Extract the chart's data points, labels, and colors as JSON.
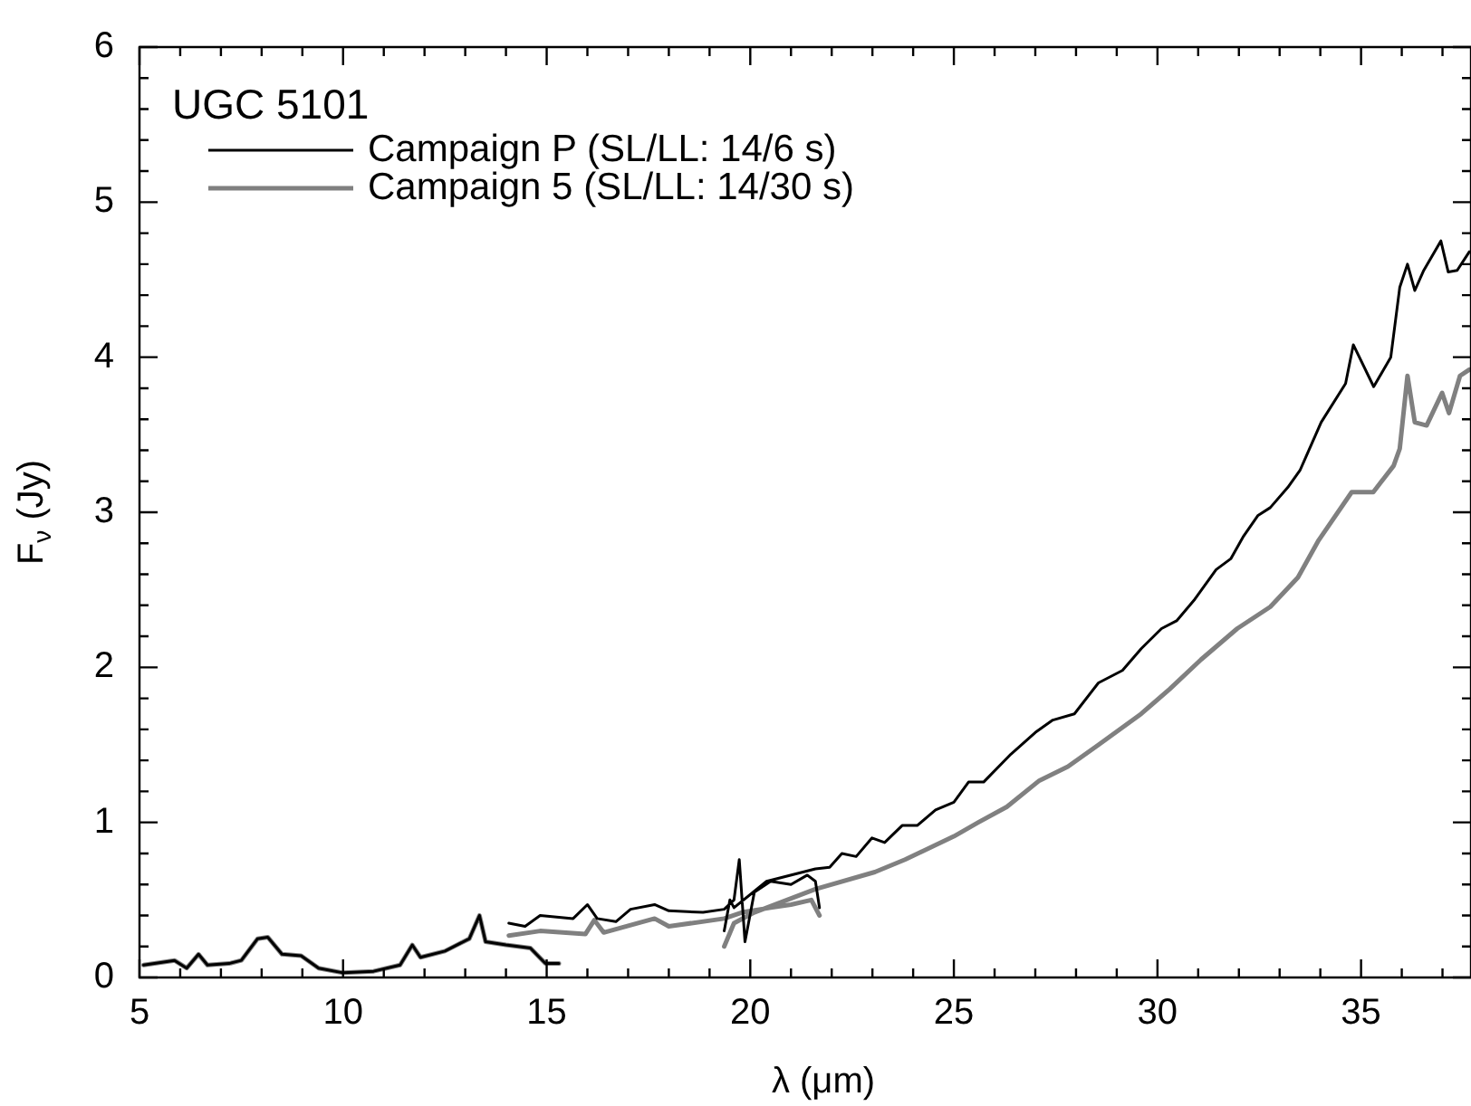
{
  "chart_data": {
    "type": "line",
    "xlabel": "λ (μm)",
    "ylabel": "F$_{ν}$ (Jy)",
    "legend_title": "UGC 5101",
    "legend": "top left",
    "grid": false,
    "marker": "none",
    "line_style": "solid",
    "xlim": [
      5,
      37.7
    ],
    "ylim": [
      0,
      6
    ],
    "xticks": [
      5,
      {
        "value": 6,
        "label": null
      },
      {
        "value": 7,
        "label": null
      },
      {
        "value": 8,
        "label": null
      },
      {
        "value": 9,
        "label": null
      },
      10,
      {
        "value": 11,
        "label": null
      },
      {
        "value": 12,
        "label": null
      },
      {
        "value": 13,
        "label": null
      },
      {
        "value": 14,
        "label": null
      },
      15,
      {
        "value": 16,
        "label": null
      },
      {
        "value": 17,
        "label": null
      },
      {
        "value": 18,
        "label": null
      },
      {
        "value": 19,
        "label": null
      },
      20,
      {
        "value": 21,
        "label": null
      },
      {
        "value": 22,
        "label": null
      },
      {
        "value": 23,
        "label": null
      },
      {
        "value": 24,
        "label": null
      },
      25,
      {
        "value": 26,
        "label": null
      },
      {
        "value": 27,
        "label": null
      },
      {
        "value": 28,
        "label": null
      },
      {
        "value": 29,
        "label": null
      },
      30,
      {
        "value": 31,
        "label": null
      },
      {
        "value": 32,
        "label": null
      },
      {
        "value": 33,
        "label": null
      },
      {
        "value": 34,
        "label": null
      },
      35,
      {
        "value": 36,
        "label": null
      },
      {
        "value": 37,
        "label": null
      }
    ],
    "yticks": [
      0,
      {
        "value": 0.2,
        "label": null
      },
      {
        "value": 0.4,
        "label": null
      },
      {
        "value": 0.6,
        "label": null
      },
      {
        "value": 0.8,
        "label": null
      },
      1,
      {
        "value": 1.2,
        "label": null
      },
      {
        "value": 1.4,
        "label": null
      },
      {
        "value": 1.6,
        "label": null
      },
      {
        "value": 1.8,
        "label": null
      },
      2,
      {
        "value": 2.2,
        "label": null
      },
      {
        "value": 2.4,
        "label": null
      },
      {
        "value": 2.6,
        "label": null
      },
      {
        "value": 2.8,
        "label": null
      },
      3,
      {
        "value": 3.2,
        "label": null
      },
      {
        "value": 3.4,
        "label": null
      },
      {
        "value": 3.6,
        "label": null
      },
      {
        "value": 3.8,
        "label": null
      },
      4,
      {
        "value": 4.2,
        "label": null
      },
      {
        "value": 4.4,
        "label": null
      },
      {
        "value": 4.6,
        "label": null
      },
      {
        "value": 4.8,
        "label": null
      },
      5,
      {
        "value": 5.2,
        "label": null
      },
      {
        "value": 5.4,
        "label": null
      },
      {
        "value": 5.6,
        "label": null
      },
      {
        "value": 5.8,
        "label": null
      },
      6
    ],
    "series": [
      {
        "name": "Campaign P (SL/LL: 14/6 s)",
        "color": "#000000",
        "x": [
          5.1,
          5.86,
          6.16,
          6.45,
          6.67,
          7.2,
          7.5,
          7.9,
          8.15,
          8.5,
          8.97,
          9.4,
          10.0,
          10.75,
          11.4,
          11.7,
          11.9,
          12.5,
          13.1,
          13.35,
          13.5,
          14.0,
          14.6,
          14.97,
          15.3,
          null,
          14.07,
          14.47,
          14.84,
          15.65,
          16.0,
          16.24,
          16.7,
          17.06,
          17.65,
          18.0,
          18.84,
          19.36,
          19.6,
          19.73,
          19.87,
          20.1,
          20.5,
          21.0,
          21.4,
          21.6,
          21.7,
          null,
          19.36,
          19.5,
          19.6,
          20.4,
          21.6,
          21.95,
          22.25,
          22.6,
          22.99,
          23.3,
          23.73,
          24.1,
          24.55,
          25.0,
          25.36,
          25.73,
          26.4,
          27.0,
          27.43,
          27.96,
          28.55,
          29.14,
          29.6,
          30.1,
          30.47,
          30.92,
          31.44,
          31.8,
          32.1,
          32.47,
          32.77,
          33.2,
          33.5,
          34.02,
          34.62,
          34.81,
          35.31,
          35.73,
          35.95,
          36.14,
          36.32,
          36.54,
          36.96,
          37.14,
          37.36,
          37.66
        ],
        "values": [
          0.08,
          0.11,
          0.06,
          0.15,
          0.08,
          0.09,
          0.11,
          0.25,
          0.26,
          0.15,
          0.14,
          0.06,
          0.03,
          0.04,
          0.08,
          0.21,
          0.13,
          0.17,
          0.25,
          0.4,
          0.23,
          0.21,
          0.19,
          0.09,
          0.09,
          null,
          0.35,
          0.33,
          0.4,
          0.38,
          0.47,
          0.38,
          0.36,
          0.44,
          0.47,
          0.43,
          0.42,
          0.44,
          0.5,
          0.76,
          0.23,
          0.55,
          0.62,
          0.6,
          0.66,
          0.62,
          0.45,
          null,
          0.3,
          0.5,
          0.45,
          0.62,
          0.7,
          0.71,
          0.8,
          0.78,
          0.9,
          0.87,
          0.98,
          0.98,
          1.08,
          1.13,
          1.26,
          1.26,
          1.44,
          1.58,
          1.66,
          1.7,
          1.9,
          1.98,
          2.12,
          2.25,
          2.3,
          2.44,
          2.63,
          2.7,
          2.84,
          2.98,
          3.03,
          3.16,
          3.27,
          3.58,
          3.83,
          4.08,
          3.81,
          4.0,
          4.45,
          4.6,
          4.43,
          4.56,
          4.75,
          4.55,
          4.56,
          4.68
        ]
      },
      {
        "name": "Campaign 5 (SL/LL: 14/30 s)",
        "color": "#808080",
        "x": [
          5.1,
          5.86,
          6.16,
          6.45,
          6.67,
          7.2,
          7.5,
          7.9,
          8.15,
          8.5,
          8.97,
          9.4,
          10.0,
          10.75,
          11.4,
          11.7,
          11.9,
          12.5,
          13.1,
          13.35,
          13.5,
          14.0,
          14.6,
          14.97,
          15.3,
          null,
          14.07,
          14.84,
          15.95,
          16.17,
          16.4,
          17.65,
          18.0,
          19.36,
          19.8,
          20.5,
          21.0,
          21.5,
          21.7,
          null,
          19.36,
          19.6,
          20.1,
          21.6,
          23.06,
          23.8,
          25.0,
          25.6,
          26.3,
          27.1,
          27.8,
          28.55,
          29.6,
          30.3,
          31.07,
          31.96,
          32.77,
          33.45,
          33.96,
          34.77,
          35.3,
          35.8,
          35.95,
          36.14,
          36.32,
          36.61,
          36.99,
          37.16,
          37.43,
          37.66
        ],
        "values": [
          0.08,
          0.11,
          0.06,
          0.15,
          0.08,
          0.09,
          0.11,
          0.25,
          0.26,
          0.15,
          0.14,
          0.06,
          0.03,
          0.04,
          0.08,
          0.21,
          0.13,
          0.17,
          0.25,
          0.4,
          0.23,
          0.21,
          0.19,
          0.09,
          0.09,
          null,
          0.27,
          0.3,
          0.28,
          0.37,
          0.29,
          0.38,
          0.33,
          0.38,
          0.42,
          0.45,
          0.47,
          0.5,
          0.4,
          null,
          0.2,
          0.35,
          0.42,
          0.57,
          0.68,
          0.76,
          0.91,
          1.0,
          1.1,
          1.27,
          1.36,
          1.5,
          1.7,
          1.86,
          2.05,
          2.25,
          2.39,
          2.58,
          2.82,
          3.13,
          3.13,
          3.3,
          3.41,
          3.88,
          3.58,
          3.56,
          3.77,
          3.64,
          3.88,
          3.92
        ]
      }
    ]
  }
}
